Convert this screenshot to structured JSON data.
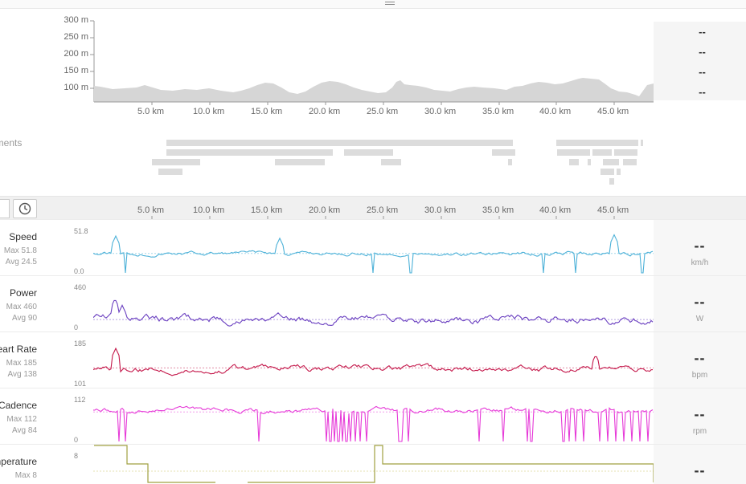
{
  "elevation": {
    "y_ticks": [
      "300 m",
      "250 m",
      "200 m",
      "150 m",
      "100 m"
    ],
    "x_ticks": [
      "5.0 km",
      "10.0 km",
      "15.0 km",
      "20.0 km",
      "25.0 km",
      "30.0 km",
      "35.0 km",
      "40.0 km",
      "45.0 km"
    ],
    "summary": [
      "--",
      "--",
      "--",
      "--"
    ]
  },
  "segments": {
    "label": "gments"
  },
  "timeline": {
    "x_ticks": [
      "5.0 km",
      "10.0 km",
      "15.0 km",
      "20.0 km",
      "25.0 km",
      "30.0 km",
      "35.0 km",
      "40.0 km",
      "45.0 km"
    ]
  },
  "streams": [
    {
      "id": "speed",
      "name": "Speed",
      "max": "Max 51.8",
      "avg": "Avg 24.5",
      "ymax": "51.8",
      "ymin": "0.0",
      "current": "--",
      "unit": "km/h",
      "color": "#4cb1d8"
    },
    {
      "id": "power",
      "name": "Power",
      "max": "Max 460",
      "avg": "Avg 90",
      "ymax": "460",
      "ymin": "0",
      "current": "--",
      "unit": "W",
      "color": "#6a3fc0"
    },
    {
      "id": "hr",
      "name": "Heart Rate",
      "max": "Max 185",
      "avg": "Avg 138",
      "ymax": "185",
      "ymin": "101",
      "current": "--",
      "unit": "bpm",
      "color": "#c4174a"
    },
    {
      "id": "cadence",
      "name": "Cadence",
      "max": "Max 112",
      "avg": "Avg 84",
      "ymax": "112",
      "ymin": "0",
      "current": "--",
      "unit": "rpm",
      "color": "#e63ad8"
    },
    {
      "id": "temp",
      "name": "emperature",
      "max": "Max 8",
      "avg": "",
      "ymax": "8",
      "ymin": "",
      "current": "--",
      "unit": "",
      "color": "#a0a040"
    }
  ],
  "colors": {
    "elevation_fill": "#d6d6d6",
    "segment": "#dcdcdc",
    "toolbar": "#f0f0f0"
  }
}
